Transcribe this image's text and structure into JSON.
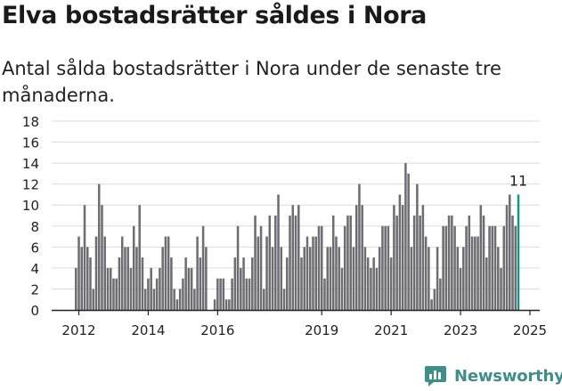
{
  "title": "Elva bostadsrätter såldes i Nora",
  "subtitle": "Antal sålda bostadsrätter i Nora under de senaste tre månaderna.",
  "brand": {
    "name": "Newsworthy"
  },
  "colors": {
    "bar": "#6d6d72",
    "highlight": "#12988a",
    "grid": "#dcdcdc",
    "axis": "#222222",
    "brand": "#3e8e89"
  },
  "chart_data": {
    "type": "bar",
    "title": "Elva bostadsrätter såldes i Nora",
    "subtitle": "Antal sålda bostadsrätter i Nora under de senaste tre månaderna.",
    "xlabel": "",
    "ylabel": "",
    "ylim": [
      0,
      18
    ],
    "yticks": [
      0,
      2,
      4,
      6,
      8,
      10,
      12,
      14,
      16,
      18
    ],
    "xticks": [
      "2012",
      "2014",
      "2016",
      "2019",
      "2021",
      "2023",
      "2025"
    ],
    "grid": true,
    "start": "2011-12",
    "frequency": "monthly",
    "values": [
      4,
      7,
      6,
      10,
      6,
      5,
      2,
      7,
      12,
      10,
      7,
      4,
      4,
      3,
      3,
      5,
      7,
      6,
      6,
      4,
      8,
      6,
      10,
      5,
      2,
      3,
      4,
      2,
      3,
      4,
      6,
      7,
      7,
      5,
      2,
      1,
      2,
      3,
      5,
      4,
      4,
      2,
      7,
      5,
      8,
      6,
      0,
      0,
      1,
      3,
      3,
      3,
      1,
      1,
      3,
      5,
      8,
      4,
      5,
      3,
      3,
      5,
      9,
      7,
      8,
      2,
      7,
      9,
      6,
      9,
      11,
      6,
      2,
      5,
      9,
      10,
      9,
      10,
      5,
      6,
      7,
      6,
      7,
      7,
      8,
      8,
      3,
      6,
      6,
      9,
      7,
      6,
      4,
      8,
      9,
      9,
      6,
      10,
      12,
      10,
      6,
      5,
      4,
      5,
      4,
      6,
      8,
      8,
      8,
      5,
      10,
      9,
      11,
      10,
      14,
      13,
      6,
      9,
      12,
      9,
      10,
      7,
      6,
      1,
      2,
      6,
      3,
      8,
      8,
      9,
      9,
      8,
      6,
      4,
      6,
      8,
      9,
      7,
      7,
      7,
      10,
      9,
      5,
      8,
      8,
      8,
      6,
      4,
      8,
      10,
      11,
      9,
      8,
      11
    ],
    "highlight_last": true,
    "annotation": {
      "text": "11",
      "target": "last"
    }
  }
}
